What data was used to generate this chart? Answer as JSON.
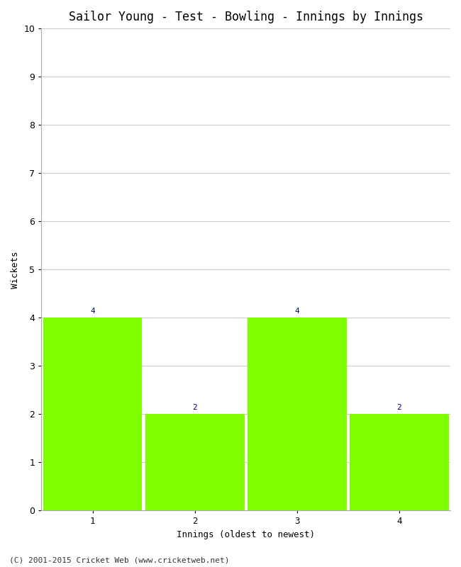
{
  "title": "Sailor Young - Test - Bowling - Innings by Innings",
  "xlabel": "Innings (oldest to newest)",
  "ylabel": "Wickets",
  "categories": [
    "1",
    "2",
    "3",
    "4"
  ],
  "values": [
    4,
    2,
    4,
    2
  ],
  "bar_color": "#7fff00",
  "bar_edge_color": "#7fff00",
  "label_color": "#00008b",
  "ylim": [
    0,
    10
  ],
  "yticks": [
    0,
    1,
    2,
    3,
    4,
    5,
    6,
    7,
    8,
    9,
    10
  ],
  "background_color": "#ffffff",
  "grid_color": "#cccccc",
  "footer": "(C) 2001-2015 Cricket Web (www.cricketweb.net)",
  "title_fontsize": 12,
  "axis_label_fontsize": 9,
  "tick_fontsize": 9,
  "label_fontsize": 8,
  "footer_fontsize": 8
}
